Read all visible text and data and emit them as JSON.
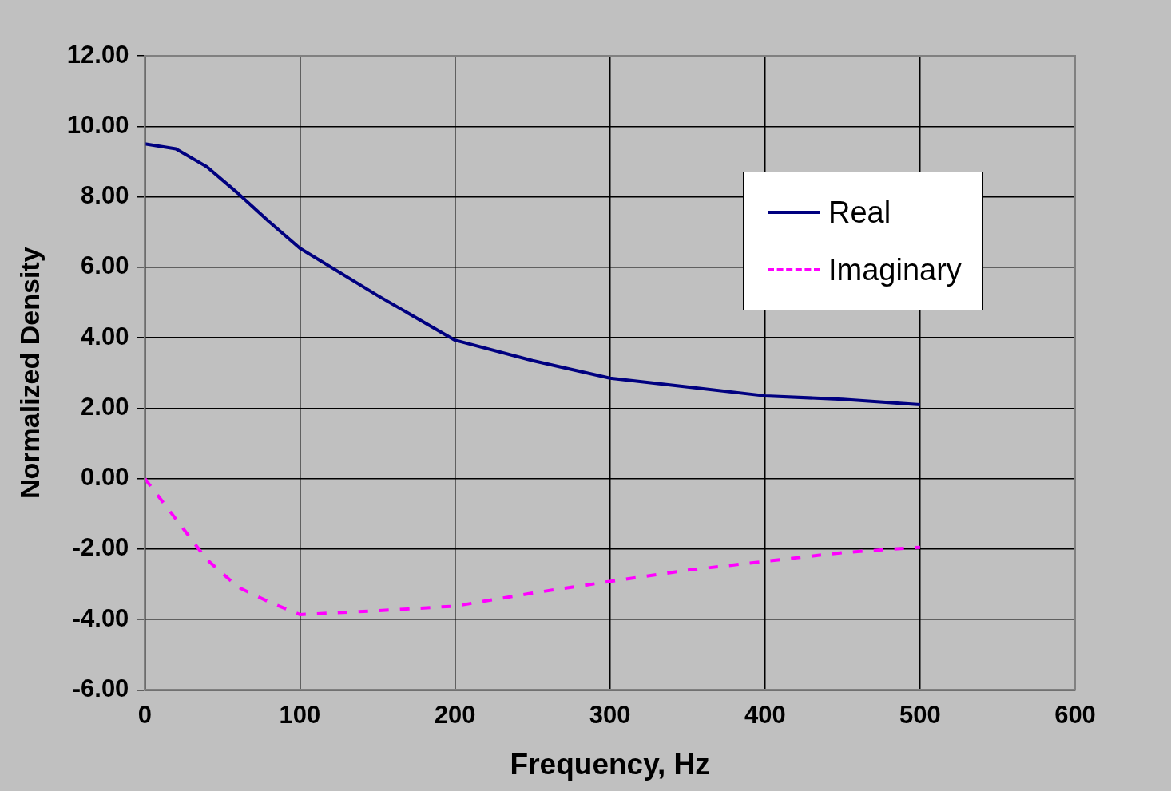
{
  "chart_data": {
    "type": "line",
    "xlabel": "Frequency, Hz",
    "ylabel": "Normalized Density",
    "x": [
      0,
      20,
      40,
      60,
      80,
      100,
      150,
      200,
      250,
      300,
      350,
      400,
      450,
      500
    ],
    "series": [
      {
        "name": "Real",
        "color": "#000080",
        "line_style": "solid",
        "values": [
          9.5,
          9.36,
          8.85,
          8.1,
          7.3,
          6.54,
          5.2,
          3.93,
          3.35,
          2.85,
          2.6,
          2.35,
          2.25,
          2.1
        ]
      },
      {
        "name": "Imaginary",
        "color": "#ff00ff",
        "line_style": "dashed",
        "values": [
          0,
          -1.15,
          -2.3,
          -3.08,
          -3.5,
          -3.86,
          -3.75,
          -3.62,
          -3.25,
          -2.92,
          -2.6,
          -2.35,
          -2.1,
          -1.95
        ]
      }
    ],
    "xlim": [
      0,
      600
    ],
    "xticks": [
      0,
      100,
      200,
      300,
      400,
      500,
      600
    ],
    "ylim": [
      -6,
      12
    ],
    "yticks": [
      {
        "value": -6,
        "label": "-6.00"
      },
      {
        "value": -4,
        "label": "-4.00"
      },
      {
        "value": -2,
        "label": "-2.00"
      },
      {
        "value": 0,
        "label": "0.00"
      },
      {
        "value": 2,
        "label": "2.00"
      },
      {
        "value": 4,
        "label": "4.00"
      },
      {
        "value": 6,
        "label": "6.00"
      },
      {
        "value": 8,
        "label": "8.00"
      },
      {
        "value": 10,
        "label": "10.00"
      },
      {
        "value": 12,
        "label": "12.00"
      }
    ],
    "grid": true,
    "legend": "top right",
    "marker": "none"
  }
}
